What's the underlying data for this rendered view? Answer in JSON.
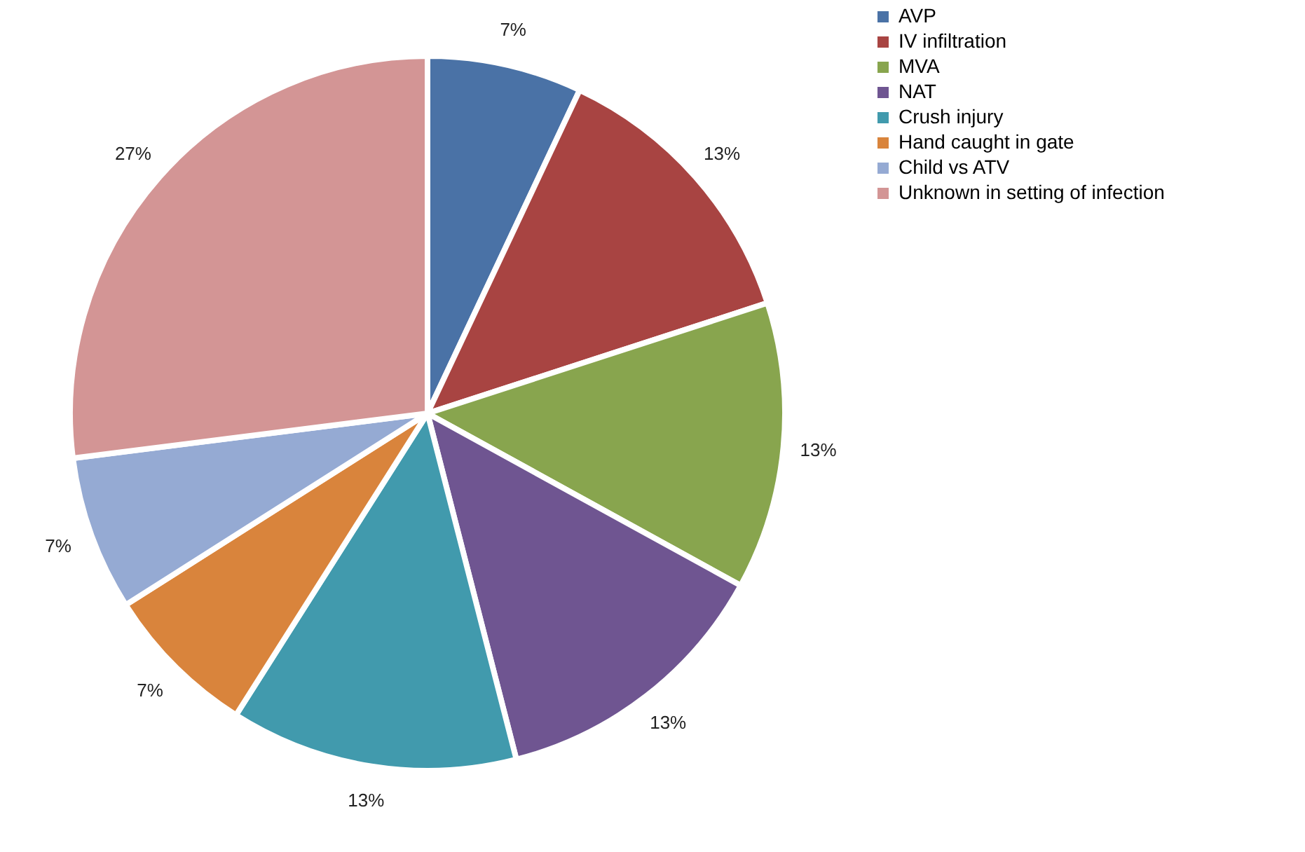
{
  "chart_data": {
    "type": "pie",
    "categories": [
      "AVP",
      "IV infiltration",
      "MVA",
      "NAT",
      "Crush injury",
      "Hand caught in gate",
      "Child vs ATV",
      "Unknown in setting of infection"
    ],
    "values": [
      7,
      13,
      13,
      13,
      13,
      7,
      7,
      27
    ],
    "colors": [
      "#4a72a6",
      "#a84442",
      "#88a54e",
      "#6f5591",
      "#419aad",
      "#d9843c",
      "#95aad3",
      "#d39595"
    ],
    "value_labels": [
      "7%",
      "13%",
      "13%",
      "13%",
      "13%",
      "7%",
      "7%",
      "27%"
    ],
    "legend": "right"
  }
}
